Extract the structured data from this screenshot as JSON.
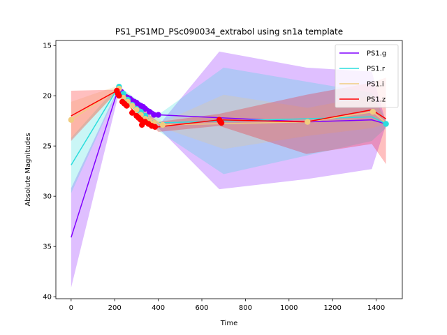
{
  "chart_data": {
    "type": "line",
    "title": "PS1_PS1MD_PSc090034_extrabol using sn1a template",
    "xlabel": "Time",
    "ylabel": "Absolute Magnitudes",
    "xlim": [
      -70,
      1520
    ],
    "ylim": [
      40.2,
      14.5
    ],
    "y_inverted": true,
    "x_ticks": [
      0,
      200,
      400,
      600,
      800,
      1000,
      1200,
      1400
    ],
    "y_ticks": [
      15,
      20,
      25,
      30,
      35,
      40
    ],
    "grid": false,
    "legend_position": "top-right",
    "series": [
      {
        "name": "PS1.g",
        "color": "#8000ff",
        "line": [
          [
            0,
            34.1
          ],
          [
            215,
            19.4
          ],
          [
            400,
            21.9
          ],
          [
            1080,
            22.6
          ],
          [
            1380,
            22.4
          ],
          [
            1445,
            22.8
          ]
        ],
        "band_upper": [
          [
            0,
            39.1
          ],
          [
            215,
            20.1
          ],
          [
            400,
            23.2
          ],
          [
            680,
            29.3
          ],
          [
            1080,
            28.3
          ],
          [
            1380,
            27.3
          ],
          [
            1445,
            22.9
          ]
        ],
        "band_lower": [
          [
            0,
            29.2
          ],
          [
            215,
            19.3
          ],
          [
            400,
            23.0
          ],
          [
            680,
            15.6
          ],
          [
            1080,
            17.2
          ],
          [
            1380,
            17.6
          ],
          [
            1445,
            22.7
          ]
        ],
        "points": [
          [
            220,
            19.2
          ],
          [
            230,
            19.6
          ],
          [
            240,
            19.9
          ],
          [
            250,
            20.1
          ],
          [
            260,
            20.2
          ],
          [
            270,
            20.3
          ],
          [
            280,
            20.5
          ],
          [
            290,
            20.6
          ],
          [
            300,
            20.7
          ],
          [
            310,
            20.9
          ],
          [
            320,
            21.0
          ],
          [
            330,
            21.1
          ],
          [
            340,
            21.3
          ],
          [
            360,
            21.6
          ],
          [
            380,
            21.9
          ],
          [
            400,
            21.9
          ]
        ]
      },
      {
        "name": "PS1.r",
        "color": "#2adddd",
        "line": [
          [
            0,
            26.9
          ],
          [
            215,
            19.2
          ],
          [
            300,
            21.6
          ],
          [
            400,
            22.7
          ],
          [
            1380,
            22.1
          ],
          [
            1445,
            22.8
          ]
        ],
        "band_upper": [
          [
            0,
            29.7
          ],
          [
            215,
            19.5
          ],
          [
            400,
            23.5
          ],
          [
            700,
            27.8
          ],
          [
            1380,
            24.5
          ],
          [
            1445,
            23.2
          ]
        ],
        "band_lower": [
          [
            0,
            24.2
          ],
          [
            215,
            19.0
          ],
          [
            400,
            21.9
          ],
          [
            700,
            17.2
          ],
          [
            1380,
            19.7
          ],
          [
            1445,
            22.4
          ]
        ],
        "points": [
          [
            220,
            19.1
          ],
          [
            240,
            19.8
          ],
          [
            260,
            20.4
          ],
          [
            280,
            20.9
          ],
          [
            300,
            21.3
          ],
          [
            320,
            21.6
          ],
          [
            340,
            22.0
          ],
          [
            1445,
            22.8
          ]
        ]
      },
      {
        "name": "PS1.i",
        "color": "#f0cc80",
        "line": [
          [
            0,
            22.4
          ],
          [
            215,
            19.3
          ],
          [
            330,
            21.9
          ],
          [
            420,
            22.9
          ],
          [
            1085,
            22.6
          ],
          [
            1385,
            21.6
          ],
          [
            1445,
            22.7
          ]
        ],
        "band_upper": [
          [
            0,
            24.3
          ],
          [
            215,
            19.6
          ],
          [
            420,
            23.2
          ],
          [
            700,
            25.3
          ],
          [
            1085,
            24.0
          ],
          [
            1385,
            23.2
          ],
          [
            1445,
            22.8
          ]
        ],
        "band_lower": [
          [
            0,
            20.6
          ],
          [
            215,
            19.0
          ],
          [
            420,
            22.6
          ],
          [
            700,
            19.9
          ],
          [
            1085,
            21.2
          ],
          [
            1385,
            20.0
          ],
          [
            1445,
            22.6
          ]
        ],
        "points": [
          [
            0,
            22.4
          ],
          [
            220,
            19.3
          ],
          [
            240,
            20.2
          ],
          [
            260,
            20.6
          ],
          [
            280,
            21.0
          ],
          [
            300,
            21.4
          ],
          [
            320,
            21.9
          ],
          [
            340,
            22.3
          ],
          [
            360,
            22.6
          ],
          [
            380,
            22.8
          ],
          [
            420,
            22.9
          ],
          [
            1085,
            22.6
          ],
          [
            1385,
            21.6
          ]
        ]
      },
      {
        "name": "PS1.z",
        "color": "#ff0000",
        "line": [
          [
            0,
            22.0
          ],
          [
            210,
            19.5
          ],
          [
            300,
            21.9
          ],
          [
            400,
            23.1
          ],
          [
            680,
            22.4
          ],
          [
            1080,
            22.6
          ],
          [
            1380,
            21.4
          ],
          [
            1445,
            22.3
          ]
        ],
        "band_upper": [
          [
            0,
            24.5
          ],
          [
            210,
            19.6
          ],
          [
            400,
            23.6
          ],
          [
            680,
            23.0
          ],
          [
            1080,
            25.8
          ],
          [
            1380,
            24.8
          ],
          [
            1445,
            26.8
          ]
        ],
        "band_lower": [
          [
            0,
            19.5
          ],
          [
            210,
            19.4
          ],
          [
            400,
            22.6
          ],
          [
            680,
            21.8
          ],
          [
            1080,
            19.9
          ],
          [
            1380,
            18.7
          ],
          [
            1445,
            18.2
          ]
        ],
        "points": [
          [
            210,
            19.5
          ],
          [
            215,
            19.8
          ],
          [
            220,
            20.0
          ],
          [
            235,
            20.6
          ],
          [
            245,
            20.8
          ],
          [
            255,
            21.0
          ],
          [
            280,
            21.7
          ],
          [
            300,
            22.0
          ],
          [
            310,
            22.2
          ],
          [
            320,
            22.4
          ],
          [
            325,
            22.9
          ],
          [
            340,
            22.6
          ],
          [
            355,
            22.8
          ],
          [
            370,
            23.0
          ],
          [
            385,
            23.1
          ],
          [
            680,
            22.4
          ],
          [
            685,
            22.6
          ],
          [
            690,
            22.7
          ]
        ]
      }
    ]
  }
}
